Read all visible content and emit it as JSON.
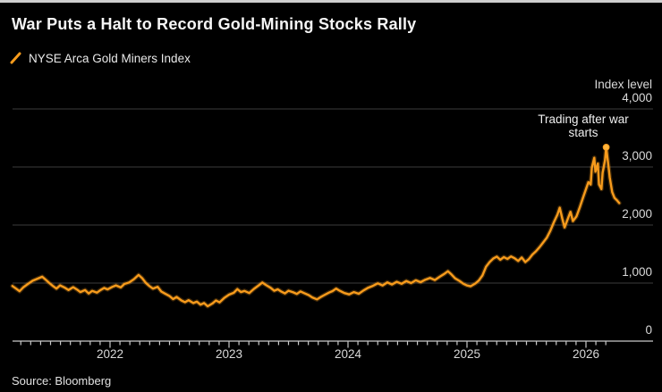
{
  "chart_data": {
    "type": "line",
    "title": "War Puts a Halt to Record Gold-Mining Stocks Rally",
    "ylabel": "Index level",
    "ylim": [
      0,
      4000
    ],
    "xlim": [
      2021.18,
      2026.56
    ],
    "yticks": [
      0,
      1000,
      2000,
      3000,
      4000
    ],
    "ytick_labels": [
      "0",
      "1,000",
      "2,000",
      "3,000",
      "4,000"
    ],
    "xtick_years": [
      2022,
      2023,
      2024,
      2025,
      2026
    ],
    "xtick_labels": [
      "2022",
      "2023",
      "2024",
      "2025",
      "2026"
    ],
    "grid": "horizontal",
    "legend_position": "top-left",
    "background_color": "#000000",
    "axis_color": "#c9c9c9",
    "gridline_color": "#3d3d3d",
    "annotation": {
      "label": "Trading after war starts",
      "t": 2026.17,
      "value": 3340,
      "marker": "dot"
    },
    "series": [
      {
        "name": "NYSE Arca Gold Miners Index",
        "color": "#F79B1C",
        "points": [
          [
            2021.18,
            950
          ],
          [
            2021.21,
            905
          ],
          [
            2021.24,
            860
          ],
          [
            2021.27,
            925
          ],
          [
            2021.31,
            985
          ],
          [
            2021.35,
            1040
          ],
          [
            2021.39,
            1075
          ],
          [
            2021.43,
            1110
          ],
          [
            2021.46,
            1055
          ],
          [
            2021.49,
            1000
          ],
          [
            2021.52,
            950
          ],
          [
            2021.55,
            905
          ],
          [
            2021.58,
            960
          ],
          [
            2021.62,
            920
          ],
          [
            2021.65,
            880
          ],
          [
            2021.69,
            930
          ],
          [
            2021.72,
            890
          ],
          [
            2021.75,
            845
          ],
          [
            2021.79,
            880
          ],
          [
            2021.82,
            820
          ],
          [
            2021.85,
            865
          ],
          [
            2021.89,
            835
          ],
          [
            2021.92,
            880
          ],
          [
            2021.95,
            915
          ],
          [
            2021.98,
            890
          ],
          [
            2022.02,
            935
          ],
          [
            2022.05,
            960
          ],
          [
            2022.09,
            925
          ],
          [
            2022.12,
            985
          ],
          [
            2022.16,
            1010
          ],
          [
            2022.2,
            1065
          ],
          [
            2022.24,
            1140
          ],
          [
            2022.27,
            1085
          ],
          [
            2022.3,
            1005
          ],
          [
            2022.33,
            950
          ],
          [
            2022.36,
            905
          ],
          [
            2022.4,
            935
          ],
          [
            2022.43,
            855
          ],
          [
            2022.46,
            820
          ],
          [
            2022.5,
            775
          ],
          [
            2022.53,
            725
          ],
          [
            2022.56,
            760
          ],
          [
            2022.6,
            700
          ],
          [
            2022.63,
            670
          ],
          [
            2022.66,
            705
          ],
          [
            2022.7,
            655
          ],
          [
            2022.73,
            680
          ],
          [
            2022.76,
            628
          ],
          [
            2022.79,
            655
          ],
          [
            2022.82,
            600
          ],
          [
            2022.86,
            648
          ],
          [
            2022.89,
            700
          ],
          [
            2022.92,
            668
          ],
          [
            2022.96,
            745
          ],
          [
            2023.0,
            800
          ],
          [
            2023.04,
            832
          ],
          [
            2023.07,
            895
          ],
          [
            2023.1,
            845
          ],
          [
            2023.13,
            865
          ],
          [
            2023.17,
            828
          ],
          [
            2023.21,
            900
          ],
          [
            2023.25,
            962
          ],
          [
            2023.28,
            1010
          ],
          [
            2023.31,
            968
          ],
          [
            2023.35,
            918
          ],
          [
            2023.38,
            868
          ],
          [
            2023.41,
            892
          ],
          [
            2023.44,
            852
          ],
          [
            2023.47,
            822
          ],
          [
            2023.5,
            868
          ],
          [
            2023.54,
            840
          ],
          [
            2023.57,
            812
          ],
          [
            2023.6,
            855
          ],
          [
            2023.63,
            828
          ],
          [
            2023.67,
            792
          ],
          [
            2023.7,
            752
          ],
          [
            2023.74,
            718
          ],
          [
            2023.77,
            758
          ],
          [
            2023.8,
            792
          ],
          [
            2023.84,
            835
          ],
          [
            2023.87,
            862
          ],
          [
            2023.9,
            905
          ],
          [
            2023.93,
            868
          ],
          [
            2023.97,
            828
          ],
          [
            2024.01,
            805
          ],
          [
            2024.05,
            845
          ],
          [
            2024.09,
            815
          ],
          [
            2024.13,
            872
          ],
          [
            2024.17,
            920
          ],
          [
            2024.21,
            952
          ],
          [
            2024.25,
            995
          ],
          [
            2024.29,
            958
          ],
          [
            2024.33,
            1012
          ],
          [
            2024.37,
            975
          ],
          [
            2024.41,
            1022
          ],
          [
            2024.45,
            988
          ],
          [
            2024.49,
            1035
          ],
          [
            2024.53,
            1000
          ],
          [
            2024.57,
            1048
          ],
          [
            2024.61,
            1015
          ],
          [
            2024.65,
            1058
          ],
          [
            2024.69,
            1088
          ],
          [
            2024.73,
            1052
          ],
          [
            2024.77,
            1108
          ],
          [
            2024.81,
            1158
          ],
          [
            2024.84,
            1205
          ],
          [
            2024.87,
            1148
          ],
          [
            2024.9,
            1082
          ],
          [
            2024.94,
            1032
          ],
          [
            2024.97,
            988
          ],
          [
            2025.0,
            958
          ],
          [
            2025.03,
            945
          ],
          [
            2025.07,
            992
          ],
          [
            2025.1,
            1045
          ],
          [
            2025.13,
            1132
          ],
          [
            2025.16,
            1282
          ],
          [
            2025.19,
            1362
          ],
          [
            2025.22,
            1422
          ],
          [
            2025.25,
            1455
          ],
          [
            2025.28,
            1402
          ],
          [
            2025.31,
            1448
          ],
          [
            2025.34,
            1415
          ],
          [
            2025.37,
            1458
          ],
          [
            2025.4,
            1428
          ],
          [
            2025.43,
            1382
          ],
          [
            2025.46,
            1440
          ],
          [
            2025.49,
            1362
          ],
          [
            2025.52,
            1412
          ],
          [
            2025.55,
            1490
          ],
          [
            2025.58,
            1548
          ],
          [
            2025.61,
            1618
          ],
          [
            2025.64,
            1698
          ],
          [
            2025.67,
            1778
          ],
          [
            2025.7,
            1898
          ],
          [
            2025.73,
            2048
          ],
          [
            2025.76,
            2178
          ],
          [
            2025.78,
            2298
          ],
          [
            2025.8,
            2118
          ],
          [
            2025.82,
            1958
          ],
          [
            2025.85,
            2118
          ],
          [
            2025.87,
            2228
          ],
          [
            2025.89,
            2068
          ],
          [
            2025.92,
            2148
          ],
          [
            2025.95,
            2318
          ],
          [
            2025.98,
            2498
          ],
          [
            2026.0,
            2618
          ],
          [
            2026.02,
            2738
          ],
          [
            2026.04,
            2698
          ],
          [
            2026.05,
            2988
          ],
          [
            2026.07,
            3158
          ],
          [
            2026.08,
            2918
          ],
          [
            2026.1,
            3058
          ],
          [
            2026.11,
            2698
          ],
          [
            2026.13,
            2618
          ],
          [
            2026.14,
            2898
          ],
          [
            2026.16,
            3118
          ],
          [
            2026.17,
            3340
          ],
          [
            2026.19,
            2998
          ],
          [
            2026.2,
            2818
          ],
          [
            2026.22,
            2568
          ],
          [
            2026.24,
            2468
          ],
          [
            2026.26,
            2428
          ],
          [
            2026.28,
            2378
          ]
        ]
      }
    ]
  },
  "footer": {
    "source": "Source: Bloomberg"
  }
}
